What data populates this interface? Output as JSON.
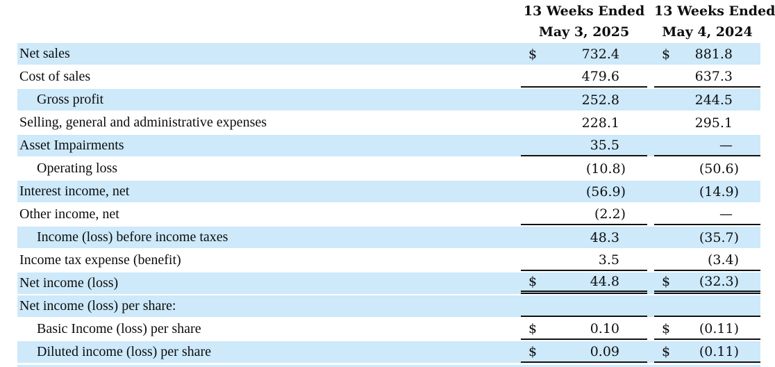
{
  "colors": {
    "row_shade": "#cde9fa",
    "text": "#0d0d0d",
    "rule": "#111111"
  },
  "table": {
    "currency_symbol": "$",
    "columns": [
      {
        "label": "13 Weeks Ended",
        "sublabel": "May 3, 2025"
      },
      {
        "label": "13 Weeks Ended",
        "sublabel": "May 4, 2024"
      }
    ],
    "rows": [
      {
        "label": "Net sales",
        "indent": false,
        "shade": true,
        "dollar": true,
        "v1": "732.4",
        "v2": "881.8",
        "line_below": "none"
      },
      {
        "label": "Cost of sales",
        "indent": false,
        "shade": false,
        "dollar": false,
        "v1": "479.6",
        "v2": "637.3",
        "line_below": "single"
      },
      {
        "label": "Gross profit",
        "indent": true,
        "shade": true,
        "dollar": false,
        "v1": "252.8",
        "v2": "244.5",
        "line_below": "none"
      },
      {
        "label": "Selling, general and administrative expenses",
        "indent": false,
        "shade": false,
        "dollar": false,
        "v1": "228.1",
        "v2": "295.1",
        "line_below": "none"
      },
      {
        "label": "Asset Impairments",
        "indent": false,
        "shade": true,
        "dollar": false,
        "v1": "35.5",
        "v2": "—",
        "line_below": "single"
      },
      {
        "label": "Operating loss",
        "indent": true,
        "shade": false,
        "dollar": false,
        "v1": "(10.8)",
        "v2": "(50.6)",
        "line_below": "none"
      },
      {
        "label": "Interest income, net",
        "indent": false,
        "shade": true,
        "dollar": false,
        "v1": "(56.9)",
        "v2": "(14.9)",
        "line_below": "none"
      },
      {
        "label": "Other income, net",
        "indent": false,
        "shade": false,
        "dollar": false,
        "v1": "(2.2)",
        "v2": "—",
        "line_below": "single"
      },
      {
        "label": "Income (loss) before income taxes",
        "indent": true,
        "shade": true,
        "dollar": false,
        "v1": "48.3",
        "v2": "(35.7)",
        "line_below": "none"
      },
      {
        "label": "Income tax expense (benefit)",
        "indent": false,
        "shade": false,
        "dollar": false,
        "v1": "3.5",
        "v2": "(3.4)",
        "line_below": "single"
      },
      {
        "label": "Net income (loss)",
        "indent": false,
        "shade": true,
        "dollar": true,
        "v1": "44.8",
        "v2": "(32.3)",
        "line_below": "double"
      },
      {
        "label": "Net income (loss) per share:",
        "indent": false,
        "shade": true,
        "dollar": false,
        "v1": "",
        "v2": "",
        "line_below": "single"
      },
      {
        "label": "Basic Income (loss) per share",
        "indent": true,
        "shade": false,
        "dollar": true,
        "v1": "0.10",
        "v2": "(0.11)",
        "line_below": "single"
      },
      {
        "label": "Diluted income (loss) per share",
        "indent": true,
        "shade": true,
        "dollar": true,
        "v1": "0.09",
        "v2": "(0.11)",
        "line_below": "single"
      }
    ]
  }
}
